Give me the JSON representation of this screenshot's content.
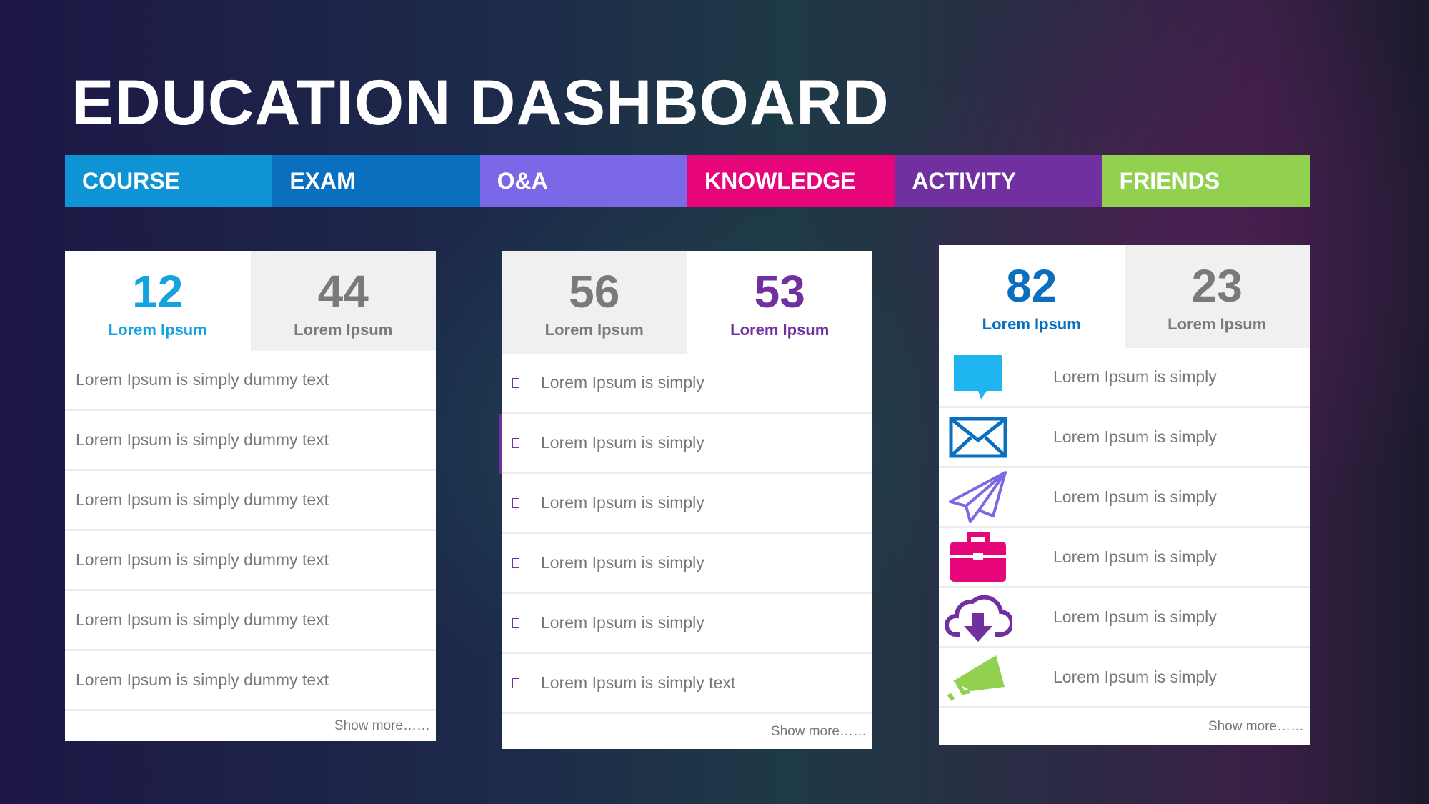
{
  "header": {
    "title": "EDUCATION DASHBOARD"
  },
  "tabs": [
    "COURSE",
    "EXAM",
    "O&A",
    "KNOWLEDGE",
    "ACTIVITY",
    "FRIENDS"
  ],
  "panels": [
    {
      "stats": [
        {
          "value": "12",
          "label": "Lorem Ipsum"
        },
        {
          "value": "44",
          "label": "Lorem Ipsum"
        }
      ],
      "items": [
        "Lorem Ipsum is simply dummy text",
        "Lorem Ipsum is simply dummy text",
        "Lorem Ipsum is simply dummy text",
        "Lorem Ipsum is simply dummy text",
        "Lorem Ipsum is simply dummy text",
        "Lorem Ipsum is simply dummy text"
      ],
      "show_more": "Show more……"
    },
    {
      "stats": [
        {
          "value": "56",
          "label": "Lorem Ipsum"
        },
        {
          "value": "53",
          "label": "Lorem Ipsum"
        }
      ],
      "items": [
        "Lorem Ipsum is simply",
        "Lorem Ipsum is simply",
        "Lorem Ipsum is simply",
        "Lorem Ipsum is simply",
        "Lorem Ipsum is simply",
        "Lorem Ipsum is simply text"
      ],
      "show_more": "Show more……"
    },
    {
      "stats": [
        {
          "value": "82",
          "label": "Lorem Ipsum"
        },
        {
          "value": "23",
          "label": "Lorem Ipsum"
        }
      ],
      "items": [
        "Lorem Ipsum is simply",
        "Lorem Ipsum is simply",
        "Lorem Ipsum is simply",
        "Lorem Ipsum is simply",
        "Lorem Ipsum is simply",
        "Lorem Ipsum is simply"
      ],
      "show_more": "Show more……"
    }
  ]
}
